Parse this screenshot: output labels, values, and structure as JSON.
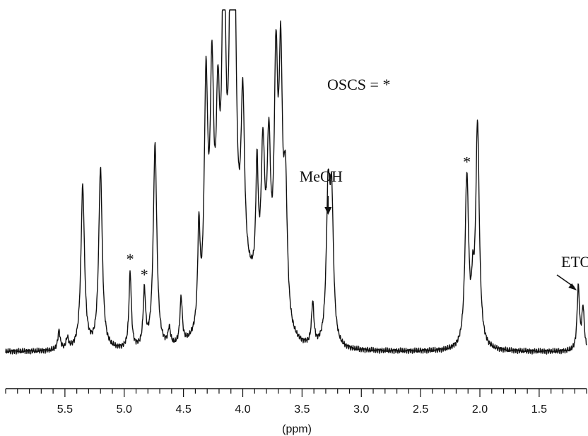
{
  "chart_data": {
    "type": "line",
    "title": "",
    "xlabel": "(ppm)",
    "ylabel": "",
    "xlim": [
      6.0,
      1.1
    ],
    "x_reversed": true,
    "x_ticks": [
      "5.5",
      "5.0",
      "4.5",
      "4.0",
      "3.5",
      "3.0",
      "2.5",
      "2.0",
      "1.5"
    ],
    "x_tick_values": [
      5.5,
      5.0,
      4.5,
      4.0,
      3.5,
      3.0,
      2.5,
      2.0,
      1.5
    ],
    "legend_note": "OSCS = *",
    "annotations": [
      {
        "text": "MeOH",
        "x": 3.28,
        "arrow": true
      },
      {
        "text": "ETOH",
        "x": 1.17,
        "arrow": true
      },
      {
        "text": "*",
        "x": 4.95
      },
      {
        "text": "*",
        "x": 4.83
      },
      {
        "text": "*",
        "x": 2.11
      }
    ],
    "peaks": [
      {
        "x": 5.55,
        "h": 0.09
      },
      {
        "x": 5.48,
        "h": 0.05
      },
      {
        "x": 5.35,
        "h": 0.77
      },
      {
        "x": 5.2,
        "h": 0.85
      },
      {
        "x": 4.95,
        "h": 0.36
      },
      {
        "x": 4.83,
        "h": 0.26
      },
      {
        "x": 4.74,
        "h": 0.96
      },
      {
        "x": 4.62,
        "h": 0.08
      },
      {
        "x": 4.52,
        "h": 0.22
      },
      {
        "x": 4.37,
        "h": 0.46
      },
      {
        "x": 4.31,
        "h": 1.1
      },
      {
        "x": 4.26,
        "h": 1.05
      },
      {
        "x": 4.21,
        "h": 0.8
      },
      {
        "x": 4.16,
        "h": 1.62
      },
      {
        "x": 4.1,
        "h": 1.35
      },
      {
        "x": 4.07,
        "h": 1.3
      },
      {
        "x": 4.0,
        "h": 0.82
      },
      {
        "x": 3.88,
        "h": 0.55
      },
      {
        "x": 3.83,
        "h": 0.68
      },
      {
        "x": 3.78,
        "h": 0.72
      },
      {
        "x": 3.72,
        "h": 1.12
      },
      {
        "x": 3.68,
        "h": 1.14
      },
      {
        "x": 3.64,
        "h": 0.62
      },
      {
        "x": 3.41,
        "h": 0.2
      },
      {
        "x": 3.28,
        "h": 0.68
      },
      {
        "x": 3.25,
        "h": 0.64
      },
      {
        "x": 2.11,
        "h": 0.8
      },
      {
        "x": 2.06,
        "h": 0.2
      },
      {
        "x": 2.02,
        "h": 1.05
      },
      {
        "x": 1.17,
        "h": 0.3
      },
      {
        "x": 1.13,
        "h": 0.2
      }
    ]
  }
}
